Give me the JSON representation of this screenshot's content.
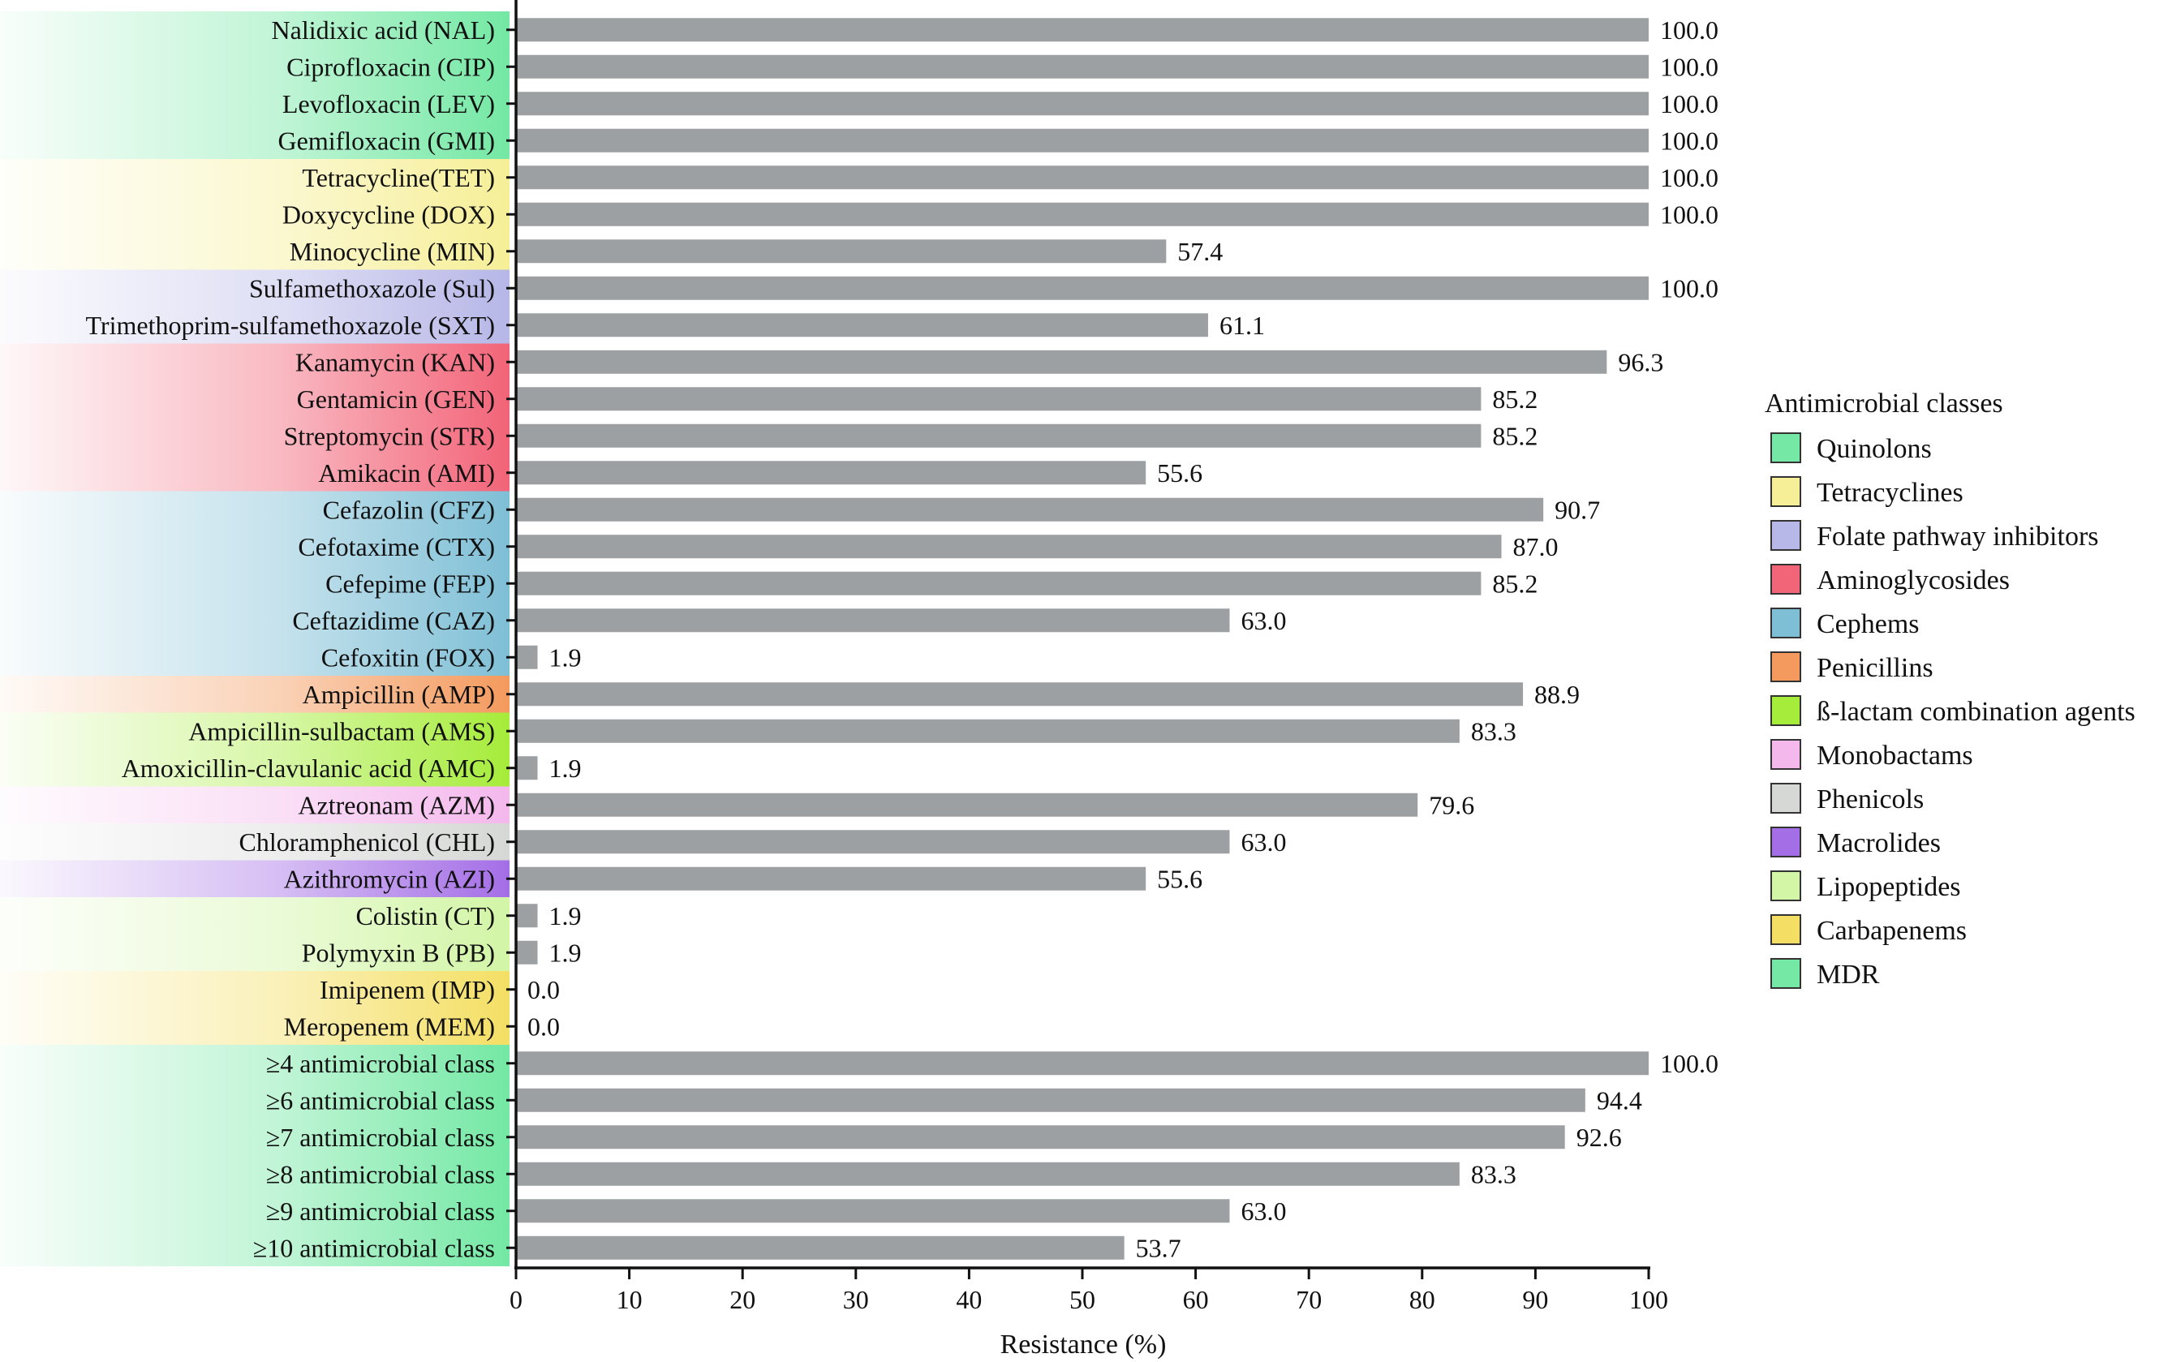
{
  "chart_data": {
    "type": "bar",
    "orientation": "horizontal",
    "xlabel": "Resistance (%)",
    "xlim": [
      0,
      100
    ],
    "xticks": [
      0,
      10,
      20,
      30,
      40,
      50,
      60,
      70,
      80,
      90,
      100
    ],
    "bar_color": "#9ca0a2",
    "categories": [
      {
        "label": "Nalidixic acid (NAL)",
        "value": 100.0,
        "value_label": "100.0",
        "class": "Quinolons"
      },
      {
        "label": "Ciprofloxacin (CIP)",
        "value": 100.0,
        "value_label": "100.0",
        "class": "Quinolons"
      },
      {
        "label": "Levofloxacin (LEV)",
        "value": 100.0,
        "value_label": "100.0",
        "class": "Quinolons"
      },
      {
        "label": "Gemifloxacin (GMI)",
        "value": 100.0,
        "value_label": "100.0",
        "class": "Quinolons"
      },
      {
        "label": "Tetracycline(TET)",
        "value": 100.0,
        "value_label": "100.0",
        "class": "Tetracyclines"
      },
      {
        "label": "Doxycycline (DOX)",
        "value": 100.0,
        "value_label": "100.0",
        "class": "Tetracyclines"
      },
      {
        "label": "Minocycline (MIN)",
        "value": 57.4,
        "value_label": "57.4",
        "class": "Tetracyclines"
      },
      {
        "label": "Sulfamethoxazole (Sul)",
        "value": 100.0,
        "value_label": "100.0",
        "class": "Folate pathway inhibitors"
      },
      {
        "label": "Trimethoprim-sulfamethoxazole (SXT)",
        "value": 61.1,
        "value_label": "61.1",
        "class": "Folate pathway inhibitors"
      },
      {
        "label": "Kanamycin (KAN)",
        "value": 96.3,
        "value_label": "96.3",
        "class": "Aminoglycosides"
      },
      {
        "label": "Gentamicin (GEN)",
        "value": 85.2,
        "value_label": "85.2",
        "class": "Aminoglycosides"
      },
      {
        "label": "Streptomycin (STR)",
        "value": 85.2,
        "value_label": "85.2",
        "class": "Aminoglycosides"
      },
      {
        "label": "Amikacin (AMI)",
        "value": 55.6,
        "value_label": "55.6",
        "class": "Aminoglycosides"
      },
      {
        "label": "Cefazolin (CFZ)",
        "value": 90.7,
        "value_label": "90.7",
        "class": "Cephems"
      },
      {
        "label": "Cefotaxime (CTX)",
        "value": 87.0,
        "value_label": "87.0",
        "class": "Cephems"
      },
      {
        "label": "Cefepime (FEP)",
        "value": 85.2,
        "value_label": "85.2",
        "class": "Cephems"
      },
      {
        "label": "Ceftazidime (CAZ)",
        "value": 63.0,
        "value_label": "63.0",
        "class": "Cephems"
      },
      {
        "label": "Cefoxitin (FOX)",
        "value": 1.9,
        "value_label": "1.9",
        "class": "Cephems"
      },
      {
        "label": "Ampicillin (AMP)",
        "value": 88.9,
        "value_label": "88.9",
        "class": "Penicillins"
      },
      {
        "label": "Ampicillin-sulbactam (AMS)",
        "value": 83.3,
        "value_label": "83.3",
        "class": "ß-lactam combination agents"
      },
      {
        "label": "Amoxicillin-clavulanic acid (AMC)",
        "value": 1.9,
        "value_label": "1.9",
        "class": "ß-lactam combination agents"
      },
      {
        "label": "Aztreonam (AZM)",
        "value": 79.6,
        "value_label": "79.6",
        "class": "Monobactams"
      },
      {
        "label": "Chloramphenicol (CHL)",
        "value": 63.0,
        "value_label": "63.0",
        "class": "Phenicols"
      },
      {
        "label": "Azithromycin (AZI)",
        "value": 55.6,
        "value_label": "55.6",
        "class": "Macrolides"
      },
      {
        "label": "Colistin (CT)",
        "value": 1.9,
        "value_label": "1.9",
        "class": "Lipopeptides"
      },
      {
        "label": "Polymyxin B (PB)",
        "value": 1.9,
        "value_label": "1.9",
        "class": "Lipopeptides"
      },
      {
        "label": "Imipenem (IMP)",
        "value": 0.0,
        "value_label": "0.0",
        "class": "Carbapenems"
      },
      {
        "label": "Meropenem (MEM)",
        "value": 0.0,
        "value_label": "0.0",
        "class": "Carbapenems"
      },
      {
        "label": "≥4 antimicrobial class",
        "value": 100.0,
        "value_label": "100.0",
        "class": "MDR"
      },
      {
        "label": "≥6 antimicrobial class",
        "value": 94.4,
        "value_label": "94.4",
        "class": "MDR"
      },
      {
        "label": "≥7 antimicrobial class",
        "value": 92.6,
        "value_label": "92.6",
        "class": "MDR"
      },
      {
        "label": "≥8 antimicrobial class",
        "value": 83.3,
        "value_label": "83.3",
        "class": "MDR"
      },
      {
        "label": "≥9 antimicrobial class",
        "value": 63.0,
        "value_label": "63.0",
        "class": "MDR"
      },
      {
        "label": "≥10 antimicrobial class",
        "value": 53.7,
        "value_label": "53.7",
        "class": "MDR"
      }
    ],
    "legend": {
      "title": "Antimicrobial classes",
      "placement": "right",
      "items": [
        {
          "label": "Quinolons",
          "color": "#74e8a4"
        },
        {
          "label": "Tetracyclines",
          "color": "#f6ef98"
        },
        {
          "label": "Folate pathway inhibitors",
          "color": "#b7b7e8"
        },
        {
          "label": "Aminoglycosides",
          "color": "#f26478"
        },
        {
          "label": "Cephems",
          "color": "#7fbfd6"
        },
        {
          "label": "Penicillins",
          "color": "#f49a5e"
        },
        {
          "label": "ß-lactam combination agents",
          "color": "#a6ec3a"
        },
        {
          "label": "Monobactams",
          "color": "#f4b8ec"
        },
        {
          "label": "Phenicols",
          "color": "#d6d8d6"
        },
        {
          "label": "Macrolides",
          "color": "#a46ee6"
        },
        {
          "label": "Lipopeptides",
          "color": "#d2f5a6"
        },
        {
          "label": "Carbapenems",
          "color": "#f4df64"
        },
        {
          "label": "MDR",
          "color": "#74e8a4"
        }
      ]
    }
  }
}
